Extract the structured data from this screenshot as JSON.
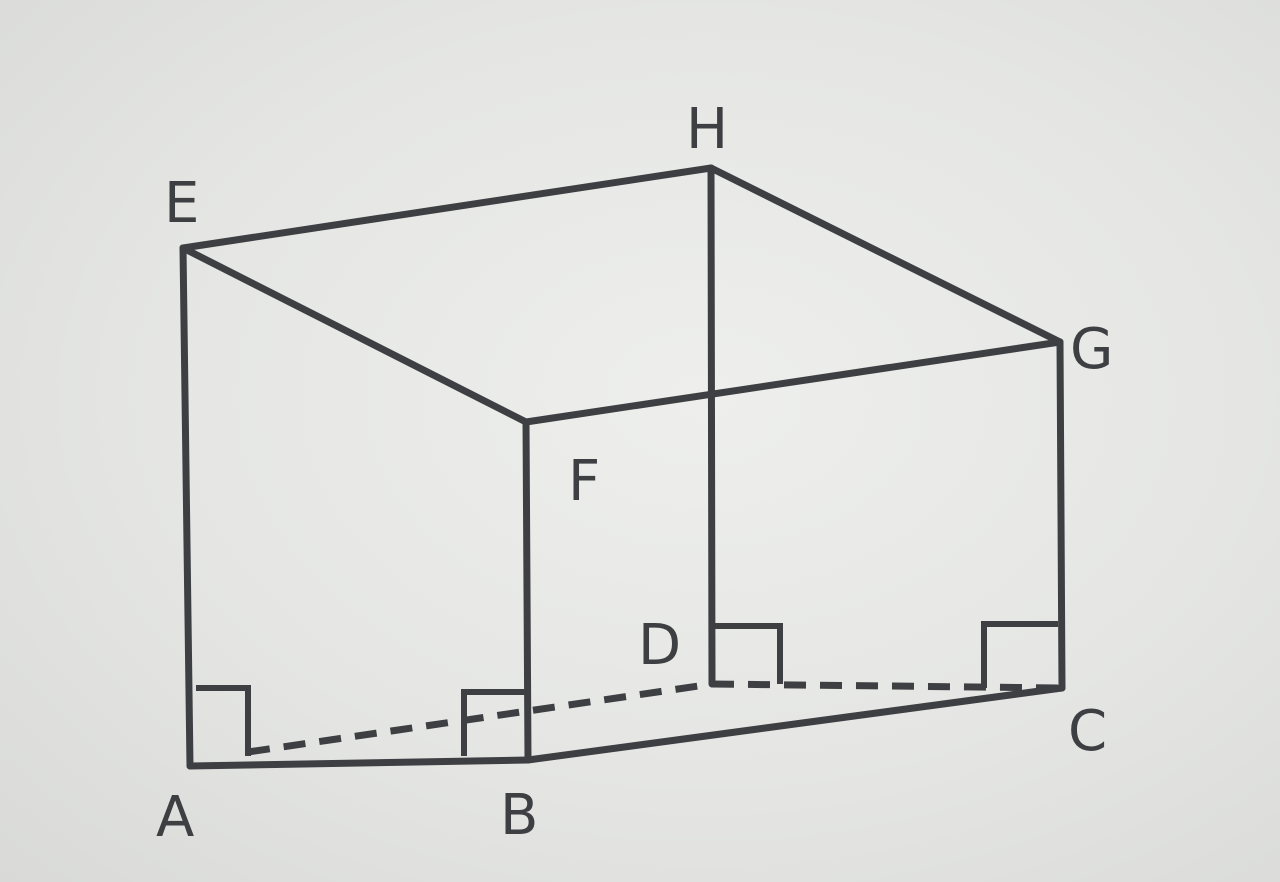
{
  "diagram": {
    "vertex_labels": {
      "A": "A",
      "B": "B",
      "C": "C",
      "D": "D",
      "E": "E",
      "F": "F",
      "G": "G",
      "H": "H"
    }
  }
}
